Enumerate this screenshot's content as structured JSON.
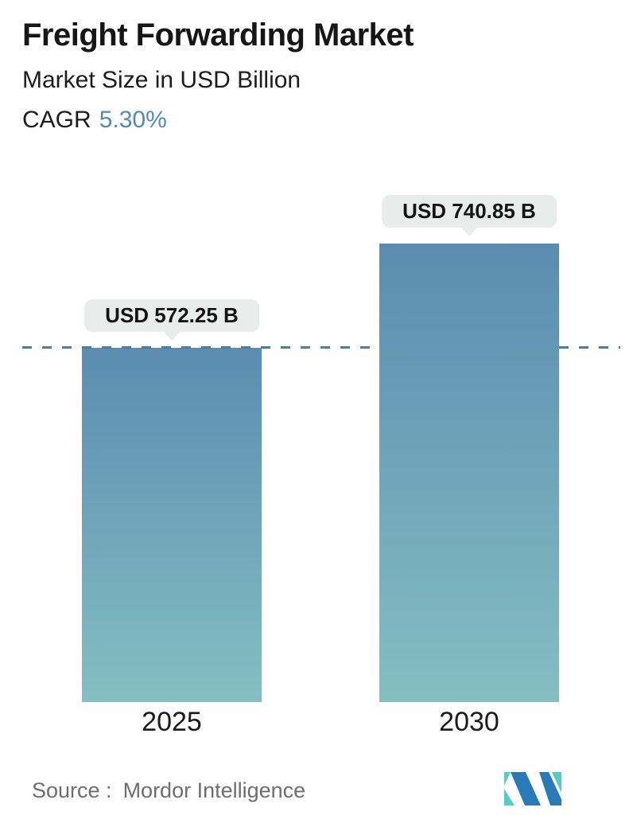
{
  "header": {
    "title": "Freight Forwarding Market",
    "subtitle": "Market Size in USD Billion",
    "cagr_label": "CAGR",
    "cagr_value": "5.30%"
  },
  "chart_data": {
    "type": "bar",
    "title": "Freight Forwarding Market",
    "subtitle": "Market Size in USD Billion",
    "unit": "USD Billion",
    "cagr_percent": "5.30%",
    "categories": [
      "2025",
      "2030"
    ],
    "values": [
      572.25,
      740.85
    ],
    "value_labels": [
      "USD 572.25 B",
      "USD 740.85 B"
    ],
    "ylim": [
      0,
      760
    ],
    "grid": false,
    "legend": "none",
    "dashed_reference_value": 572.25,
    "bar_gradient_top": "#5b8cb1",
    "bar_gradient_bottom": "#85bec2"
  },
  "footer": {
    "source_label": "Source :",
    "source_value": "Mordor Intelligence",
    "logo_name": "mordor-intelligence-logo"
  },
  "colors": {
    "accent_blue": "#5288ba",
    "dashed_line": "#4d7ca6",
    "tooltip_bg": "#e8edeb",
    "text_dark": "#1b1b1b",
    "text_gray": "#6e6e6e",
    "logo_teal": "#55cbc6",
    "logo_blue": "#2b7ab8"
  }
}
